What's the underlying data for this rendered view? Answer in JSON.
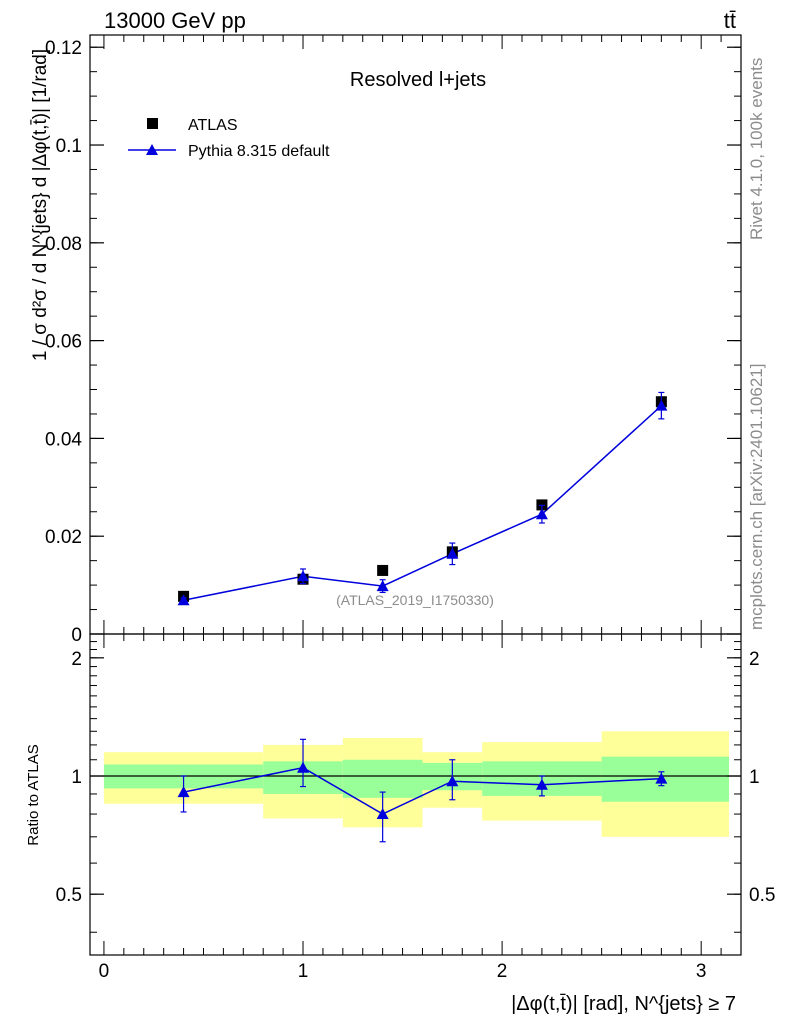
{
  "header": {
    "left": "13000 GeV pp",
    "right": "tt̄"
  },
  "side_labels": {
    "rivet": "Rivet 4.1.0,  100k events",
    "mcplots": "mcplots.cern.ch [arXiv:2401.10621]"
  },
  "chart_data": [
    {
      "type": "scatter",
      "panel": "main",
      "title": "Resolved l+jets",
      "analysis_tag": "(ATLAS_2019_I1750330)",
      "ylabel": "1 / σ d²σ / d N^{jets} d |Δφ(t,t̄)| [1/rad]",
      "xlim": [
        -0.07,
        3.2
      ],
      "ylim": [
        0,
        0.1225
      ],
      "yticks": [
        0,
        0.02,
        0.04,
        0.06,
        0.08,
        0.1,
        0.12
      ],
      "ytick_labels": [
        "0",
        "0.02",
        "0.04",
        "0.06",
        "0.08",
        "0.1",
        "0.12"
      ],
      "legend": {
        "position": "top-left",
        "entries": [
          "ATLAS",
          "Pythia 8.315 default"
        ]
      },
      "series": [
        {
          "name": "ATLAS",
          "marker": "square",
          "color": "#000000",
          "x": [
            0.4,
            1.0,
            1.4,
            1.75,
            2.2,
            2.8
          ],
          "y": [
            0.0077,
            0.0112,
            0.013,
            0.0168,
            0.0264,
            0.0475
          ],
          "yerr": [
            0.0004,
            0.0007,
            0.0005,
            0.0009,
            0.0009,
            0.0011
          ]
        },
        {
          "name": "Pythia 8.315 default",
          "marker": "triangle",
          "color": "#0000dd",
          "x": [
            0.4,
            1.0,
            1.4,
            1.75,
            2.2,
            2.8
          ],
          "y": [
            0.0069,
            0.0118,
            0.0098,
            0.0164,
            0.0245,
            0.0467
          ],
          "yerr": [
            0.0005,
            0.0015,
            0.0013,
            0.0022,
            0.0018,
            0.0027
          ]
        }
      ]
    },
    {
      "type": "scatter",
      "panel": "ratio",
      "ylabel": "Ratio to ATLAS",
      "xlabel": "|Δφ(t,t̄)| [rad], N^{jets} ≥ 7",
      "xlim": [
        -0.07,
        3.2
      ],
      "ylim": [
        0.35,
        2.3
      ],
      "yticks": [
        0.5,
        1,
        2
      ],
      "ytick_labels": [
        "0.5",
        "1",
        "2"
      ],
      "xticks": [
        0,
        1,
        2,
        3
      ],
      "xtick_labels": [
        "0",
        "1",
        "2",
        "3"
      ],
      "bands": [
        {
          "x0": 0.0,
          "x1": 0.8,
          "green": [
            0.93,
            1.07
          ],
          "yellow": [
            0.85,
            1.15
          ]
        },
        {
          "x0": 0.8,
          "x1": 1.2,
          "green": [
            0.9,
            1.09
          ],
          "yellow": [
            0.78,
            1.2
          ]
        },
        {
          "x0": 1.2,
          "x1": 1.6,
          "green": [
            0.88,
            1.1
          ],
          "yellow": [
            0.74,
            1.25
          ]
        },
        {
          "x0": 1.6,
          "x1": 1.9,
          "green": [
            0.92,
            1.08
          ],
          "yellow": [
            0.83,
            1.15
          ]
        },
        {
          "x0": 1.9,
          "x1": 2.5,
          "green": [
            0.89,
            1.09
          ],
          "yellow": [
            0.77,
            1.22
          ]
        },
        {
          "x0": 2.5,
          "x1": 3.14,
          "green": [
            0.86,
            1.12
          ],
          "yellow": [
            0.7,
            1.3
          ]
        }
      ],
      "series": [
        {
          "name": "Pythia 8.315 default / ATLAS",
          "color": "#0000dd",
          "x": [
            0.4,
            1.0,
            1.4,
            1.75,
            2.2,
            2.8
          ],
          "y": [
            0.91,
            1.05,
            0.8,
            0.97,
            0.95,
            0.985
          ],
          "ylo": [
            0.81,
            0.94,
            0.68,
            0.87,
            0.89,
            0.945
          ],
          "yhi": [
            1.0,
            1.24,
            0.91,
            1.1,
            1.0,
            1.025
          ]
        }
      ]
    }
  ]
}
